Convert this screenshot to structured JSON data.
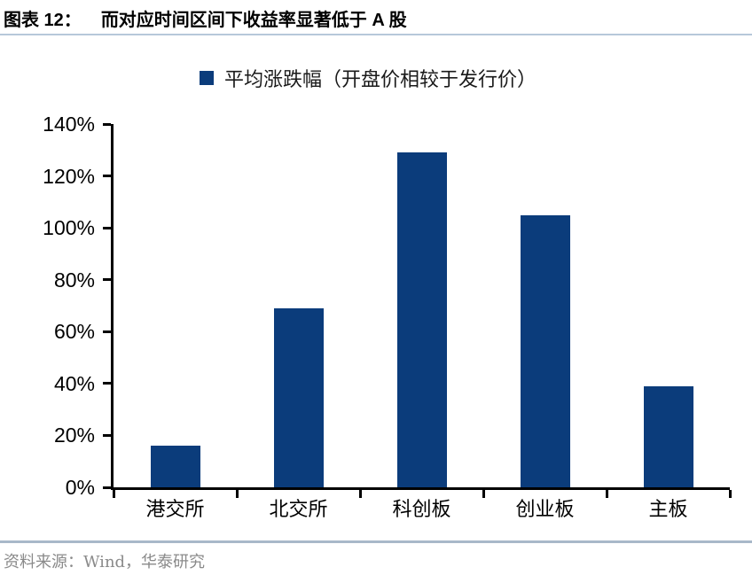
{
  "header": {
    "figure_label": "图表 12：",
    "title": "而对应时间区间下收益率显著低于 A 股"
  },
  "footer": {
    "source": "资料来源：Wind，华泰研究"
  },
  "colors": {
    "bar": "#0b3c7b",
    "title_rule": "#b6c8da",
    "footer_rule": "#a8b8c9",
    "source_text": "#8a8a8a",
    "axis": "#000000"
  },
  "chart_data": {
    "type": "bar",
    "title": "",
    "legend": [
      "平均涨跌幅（开盘价相较于发行价）"
    ],
    "legend_position": "top-center",
    "categories": [
      "港交所",
      "北交所",
      "科创板",
      "创业板",
      "主板"
    ],
    "values": [
      16,
      69,
      129,
      105,
      39
    ],
    "unit": "%",
    "xlabel": "",
    "ylabel": "",
    "ylim": [
      0,
      140
    ],
    "y_tick_step": 20,
    "y_tick_labels": [
      "0%",
      "20%",
      "40%",
      "60%",
      "80%",
      "100%",
      "120%",
      "140%"
    ],
    "grid": false
  }
}
